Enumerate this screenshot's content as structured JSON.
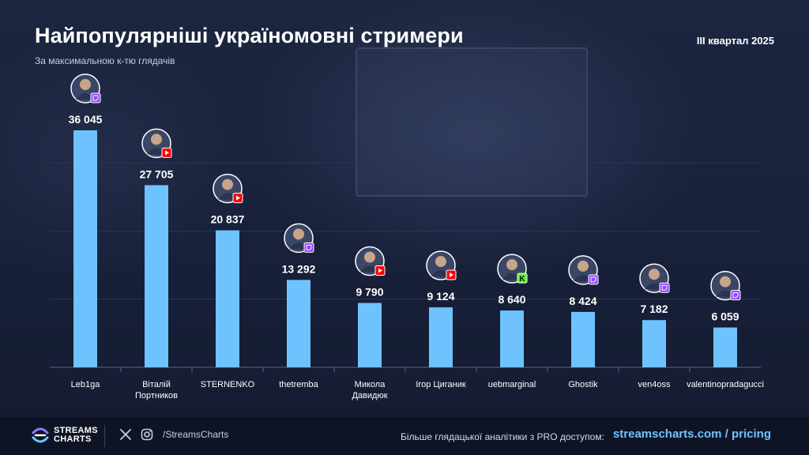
{
  "header": {
    "title": "Найпопулярніші україномовні стримери",
    "subtitle": "За максимальною к-тю глядачів",
    "period": "III квартал 2025"
  },
  "chart_data": {
    "type": "bar",
    "title": "Найпопулярніші україномовні стримери",
    "subtitle": "За максимальною к-тю глядачів",
    "ylabel": "",
    "xlabel": "",
    "ylim": [
      0,
      40000
    ],
    "grid": true,
    "categories": [
      {
        "name": "Leb1ga",
        "value": 36045,
        "label": "36 045",
        "platform": "twitch"
      },
      {
        "name": "Віталій Портников",
        "value": 27705,
        "label": "27 705",
        "platform": "youtube"
      },
      {
        "name": "STERNENKO",
        "value": 20837,
        "label": "20 837",
        "platform": "youtube"
      },
      {
        "name": "thetremba",
        "value": 13292,
        "label": "13 292",
        "platform": "twitch"
      },
      {
        "name": "Микола Давидюк",
        "value": 9790,
        "label": "9 790",
        "platform": "youtube"
      },
      {
        "name": "Ігор Циганик",
        "value": 9124,
        "label": "9 124",
        "platform": "youtube"
      },
      {
        "name": "uebmarginal",
        "value": 8640,
        "label": "8 640",
        "platform": "kick"
      },
      {
        "name": "Ghostik",
        "value": 8424,
        "label": "8 424",
        "platform": "twitch"
      },
      {
        "name": "ven4oss",
        "value": 7182,
        "label": "7 182",
        "platform": "twitch"
      },
      {
        "name": "valentinopradagucci",
        "value": 6059,
        "label": "6 059",
        "platform": "twitch"
      }
    ],
    "colors": {
      "bar": "#6ec3ff",
      "twitch": "#9146ff",
      "youtube": "#ff0000",
      "kick": "#53fc18",
      "grid": "#2c3550",
      "axis": "#5a6684"
    }
  },
  "footer": {
    "brand_line1": "STREAMS",
    "brand_line2": "CHARTS",
    "handle": "/StreamsCharts",
    "promo": "Більше глядацької аналітики з PRO доступом:",
    "pricing": "streamscharts.com / pricing",
    "icons": [
      "x-icon",
      "instagram-icon"
    ]
  }
}
